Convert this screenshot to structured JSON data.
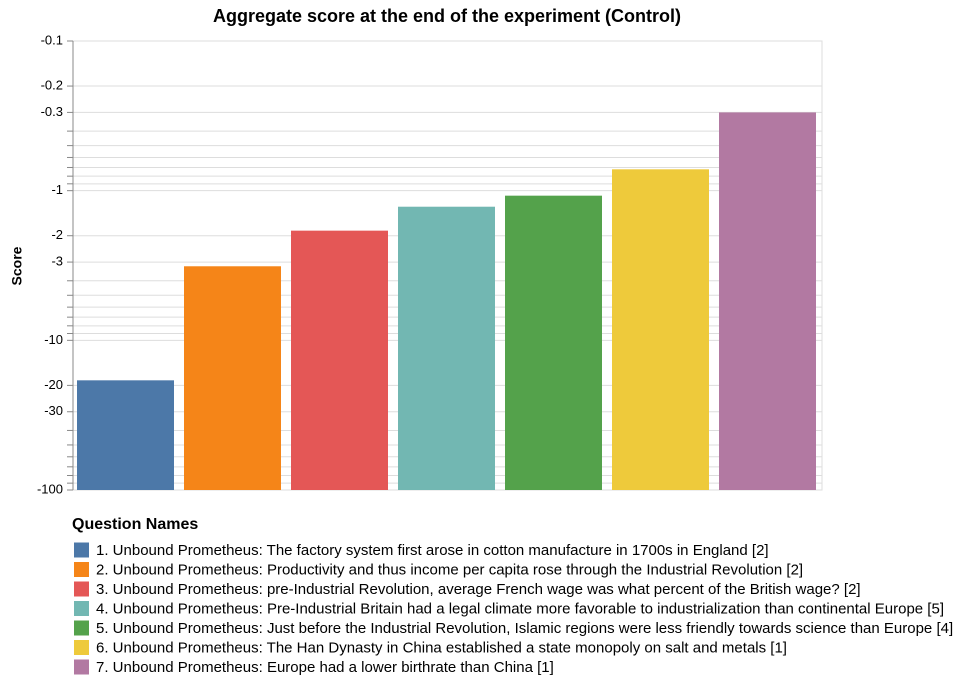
{
  "chart_data": {
    "type": "bar",
    "title": "Aggregate score at the end of the experiment (Control)",
    "y_label": "Score",
    "yscale": "log",
    "grid": true,
    "legend_title": "Question Names",
    "categories": [
      "1. Unbound Prometheus: The factory system first arose in cotton manufacture in 1700s in England [2]",
      "2. Unbound Prometheus: Productivity and thus income per capita rose through the Industrial Revolution [2]",
      "3. Unbound Prometheus: pre-Industrial Revolution, average French wage was what percent of the British wage? [2]",
      "4. Unbound Prometheus: Pre-Industrial Britain had a legal climate more favorable to industrialization than continental Europe [5]",
      "5. Unbound Prometheus: Just before the Industrial Revolution, Islamic regions were less friendly towards science than Europe [4]",
      "6. Unbound Prometheus: The Han Dynasty in China established a state monopoly on salt and metals [1]",
      "7. Unbound Prometheus: Europe had a lower birthrate than China [1]"
    ],
    "values": [
      -18.5,
      -3.2,
      -1.85,
      -1.28,
      -1.08,
      -0.72,
      -0.3
    ],
    "colors": [
      "#4c78a8",
      "#f58518",
      "#e45756",
      "#72b7b2",
      "#54a24b",
      "#eeca3b",
      "#b279a2"
    ],
    "ylim": [
      -0.1,
      -100
    ],
    "yticks": [
      -0.1,
      -0.2,
      -0.3,
      {
        "value": -0.4,
        "label": null
      },
      {
        "value": -0.5,
        "label": null
      },
      {
        "value": -0.6,
        "label": null
      },
      {
        "value": -0.7,
        "label": null
      },
      {
        "value": -0.8,
        "label": null
      },
      {
        "value": -0.9,
        "label": null
      },
      -1,
      -2,
      -3,
      {
        "value": -4,
        "label": null
      },
      {
        "value": -5,
        "label": null
      },
      {
        "value": -6,
        "label": null
      },
      {
        "value": -7,
        "label": null
      },
      {
        "value": -8,
        "label": null
      },
      {
        "value": -9,
        "label": null
      },
      -10,
      -20,
      -30,
      {
        "value": -40,
        "label": null
      },
      {
        "value": -50,
        "label": null
      },
      {
        "value": -60,
        "label": null
      },
      {
        "value": -70,
        "label": null
      },
      {
        "value": -80,
        "label": null
      },
      {
        "value": -90,
        "label": null
      },
      -100
    ]
  }
}
